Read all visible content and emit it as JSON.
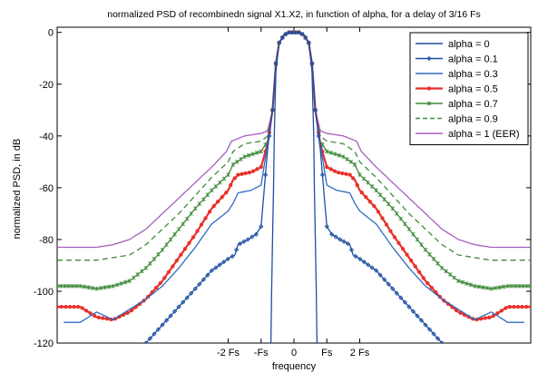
{
  "chart_data": {
    "type": "line",
    "title": "normalized PSD of recombinedn signal X1.X2, in function of alpha, for a delay of 3/16 Fs",
    "xlabel": "frequency",
    "ylabel": "normalized PSD, in dB",
    "xlim": [
      -7.2,
      7.2
    ],
    "ylim": [
      -120,
      2
    ],
    "yticks": [
      0,
      -20,
      -40,
      -60,
      -80,
      -100,
      -120
    ],
    "xticks": [
      {
        "value": -2,
        "label": "-2 Fs"
      },
      {
        "value": -1,
        "label": "-Fs"
      },
      {
        "value": 0,
        "label": "0"
      },
      {
        "value": 1,
        "label": "Fs"
      },
      {
        "value": 2,
        "label": "2 Fs"
      }
    ],
    "grid": false,
    "legend_position": "top-right",
    "series": [
      {
        "name": "alpha = 0",
        "color": "#1f4fa3",
        "marker": "none",
        "points": [
          [
            0,
            0
          ],
          [
            0.15,
            0
          ],
          [
            0.3,
            -1
          ],
          [
            0.45,
            -4
          ],
          [
            0.55,
            -15
          ],
          [
            0.6,
            -40
          ],
          [
            0.62,
            -60
          ],
          [
            0.65,
            -80
          ],
          [
            0.68,
            -100
          ],
          [
            0.7,
            -120
          ]
        ]
      },
      {
        "name": "alpha = 0.1",
        "color": "#1f4fa3",
        "marker": "diamond",
        "points": [
          [
            0,
            0
          ],
          [
            0.15,
            0
          ],
          [
            0.3,
            -1
          ],
          [
            0.45,
            -4
          ],
          [
            0.55,
            -12
          ],
          [
            0.65,
            -30
          ],
          [
            0.8,
            -45
          ],
          [
            1.0,
            -75
          ],
          [
            1.15,
            -78
          ],
          [
            1.4,
            -80
          ],
          [
            1.7,
            -82
          ],
          [
            1.8,
            -86
          ],
          [
            1.95,
            -87
          ],
          [
            2.5,
            -92
          ],
          [
            3.0,
            -99
          ],
          [
            3.5,
            -106
          ],
          [
            4.0,
            -113
          ],
          [
            4.5,
            -120
          ]
        ]
      },
      {
        "name": "alpha = 0.3",
        "color": "#2f6bbf",
        "marker": "none",
        "points": [
          [
            0,
            0
          ],
          [
            0.15,
            0
          ],
          [
            0.3,
            -1
          ],
          [
            0.45,
            -4
          ],
          [
            0.55,
            -12
          ],
          [
            0.65,
            -30
          ],
          [
            0.8,
            -43
          ],
          [
            1.0,
            -59
          ],
          [
            1.3,
            -61
          ],
          [
            1.7,
            -62
          ],
          [
            1.85,
            -66
          ],
          [
            2.0,
            -69
          ],
          [
            2.5,
            -74
          ],
          [
            3.0,
            -83
          ],
          [
            3.5,
            -91
          ],
          [
            4.0,
            -98
          ],
          [
            4.5,
            -103
          ],
          [
            5.0,
            -107
          ],
          [
            5.5,
            -111
          ],
          [
            6.0,
            -108
          ],
          [
            6.5,
            -112
          ],
          [
            7.0,
            -112
          ]
        ]
      },
      {
        "name": "alpha = 0.5",
        "color": "#e8302a",
        "marker": "dot",
        "points": [
          [
            0,
            0
          ],
          [
            0.15,
            0
          ],
          [
            0.3,
            -1
          ],
          [
            0.45,
            -4
          ],
          [
            0.55,
            -12
          ],
          [
            0.65,
            -30
          ],
          [
            0.8,
            -43
          ],
          [
            1.0,
            -52
          ],
          [
            1.3,
            -54
          ],
          [
            1.7,
            -55
          ],
          [
            1.85,
            -57
          ],
          [
            2.0,
            -61
          ],
          [
            2.5,
            -68
          ],
          [
            3.0,
            -78
          ],
          [
            3.5,
            -87
          ],
          [
            4.0,
            -96
          ],
          [
            4.5,
            -103
          ],
          [
            5.0,
            -108
          ],
          [
            5.5,
            -111
          ],
          [
            6.0,
            -110
          ],
          [
            6.5,
            -106
          ],
          [
            7.0,
            -106
          ],
          [
            7.2,
            -106
          ]
        ]
      },
      {
        "name": "alpha = 0.7",
        "color": "#3e8a3a",
        "marker": "star",
        "points": [
          [
            0,
            0
          ],
          [
            0.15,
            0
          ],
          [
            0.3,
            -1
          ],
          [
            0.45,
            -4
          ],
          [
            0.55,
            -12
          ],
          [
            0.65,
            -30
          ],
          [
            0.8,
            -42
          ],
          [
            1.0,
            -46
          ],
          [
            1.5,
            -48
          ],
          [
            1.85,
            -51
          ],
          [
            2.0,
            -55
          ],
          [
            2.5,
            -61
          ],
          [
            3.0,
            -68
          ],
          [
            3.5,
            -76
          ],
          [
            4.0,
            -84
          ],
          [
            4.5,
            -91
          ],
          [
            5.0,
            -96
          ],
          [
            5.5,
            -98
          ],
          [
            6.0,
            -99
          ],
          [
            6.5,
            -98
          ],
          [
            7.2,
            -98
          ]
        ]
      },
      {
        "name": "alpha = 0.9",
        "color": "#3e8a3a",
        "marker": "none",
        "dash": "6,4",
        "points": [
          [
            0,
            0
          ],
          [
            0.15,
            0
          ],
          [
            0.3,
            -1
          ],
          [
            0.45,
            -4
          ],
          [
            0.55,
            -12
          ],
          [
            0.65,
            -30
          ],
          [
            0.8,
            -40
          ],
          [
            1.0,
            -42
          ],
          [
            1.5,
            -43
          ],
          [
            1.85,
            -46
          ],
          [
            2.0,
            -50
          ],
          [
            2.5,
            -56
          ],
          [
            3.0,
            -63
          ],
          [
            3.5,
            -70
          ],
          [
            4.0,
            -76
          ],
          [
            4.5,
            -82
          ],
          [
            5.0,
            -86
          ],
          [
            5.5,
            -87
          ],
          [
            6.0,
            -88
          ],
          [
            7.2,
            -88
          ]
        ]
      },
      {
        "name": "alpha = 1 (EER)",
        "color": "#a55fbe",
        "marker": "none",
        "points": [
          [
            0,
            0
          ],
          [
            0.15,
            0
          ],
          [
            0.3,
            -1
          ],
          [
            0.45,
            -4
          ],
          [
            0.55,
            -12
          ],
          [
            0.65,
            -30
          ],
          [
            0.8,
            -38
          ],
          [
            1.0,
            -39
          ],
          [
            1.5,
            -40
          ],
          [
            1.9,
            -42
          ],
          [
            2.05,
            -46
          ],
          [
            2.5,
            -52
          ],
          [
            3.0,
            -58
          ],
          [
            3.5,
            -64
          ],
          [
            4.0,
            -70
          ],
          [
            4.5,
            -76
          ],
          [
            5.0,
            -80
          ],
          [
            5.5,
            -82
          ],
          [
            6.0,
            -83
          ],
          [
            7.2,
            -83
          ]
        ]
      }
    ]
  }
}
